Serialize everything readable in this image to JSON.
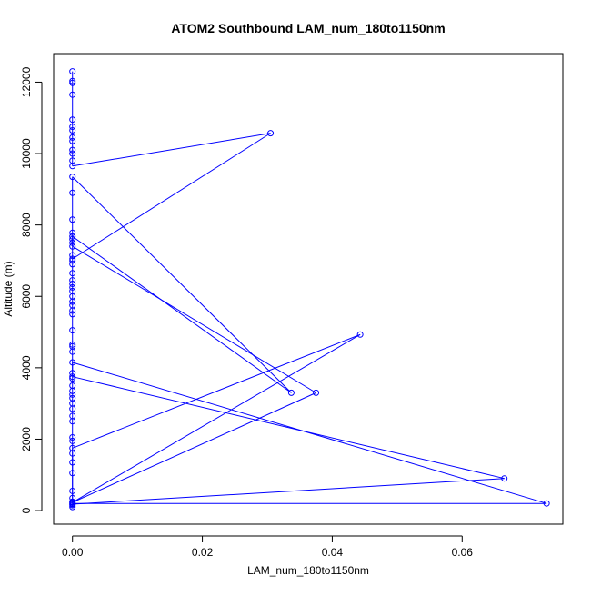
{
  "chart_data": {
    "type": "line",
    "title": "ATOM2 Southbound LAM_num_180to1150nm",
    "xlabel": "LAM_num_180to1150nm",
    "ylabel": "Altitude (m)",
    "xlim": [
      -0.0029,
      0.0755
    ],
    "ylim": [
      -380,
      12800
    ],
    "xticks": [
      0.0,
      0.02,
      0.04,
      0.06
    ],
    "xtick_labels": [
      "0.00",
      "0.02",
      "0.04",
      "0.06"
    ],
    "yticks": [
      0,
      2000,
      4000,
      6000,
      8000,
      10000,
      12000
    ],
    "ytick_labels": [
      "0",
      "2000",
      "4000",
      "6000",
      "8000",
      "10000",
      "12000"
    ],
    "grid": false,
    "legend": "none",
    "colors": {
      "series": "#0000ff",
      "axes": "#000000",
      "background": "#ffffff"
    },
    "series": [
      {
        "marker": "open-circle",
        "points": [
          [
            0,
            12300
          ],
          [
            0,
            12030
          ],
          [
            0,
            11980
          ],
          [
            0,
            11650
          ],
          [
            0,
            10950
          ],
          [
            0,
            10750
          ],
          [
            0,
            10650
          ],
          [
            0,
            10450
          ],
          [
            0,
            10350
          ],
          [
            0,
            10100
          ],
          [
            0,
            10000
          ],
          [
            0,
            9800
          ],
          [
            0,
            9650
          ],
          [
            0.0305,
            10570
          ],
          [
            0,
            7050
          ],
          [
            0,
            7680
          ],
          [
            0.0337,
            3300
          ],
          [
            0,
            9350
          ],
          [
            0,
            8900
          ],
          [
            0,
            8150
          ],
          [
            0,
            7780
          ],
          [
            0,
            7600
          ],
          [
            0,
            7500
          ],
          [
            0,
            7400
          ],
          [
            0.0375,
            3300
          ],
          [
            0,
            230
          ],
          [
            0.0443,
            4930
          ],
          [
            0,
            1750
          ],
          [
            0,
            1600
          ],
          [
            0,
            1350
          ],
          [
            0,
            1050
          ],
          [
            0,
            550
          ],
          [
            0,
            350
          ],
          [
            0,
            250
          ],
          [
            0,
            200
          ],
          [
            0.073,
            200
          ],
          [
            0,
            4150
          ],
          [
            0,
            3750
          ],
          [
            0.0665,
            900
          ],
          [
            0,
            180
          ],
          [
            0,
            150
          ],
          [
            0,
            100
          ],
          [
            0,
            1950
          ],
          [
            0,
            2050
          ],
          [
            0,
            2500
          ],
          [
            0,
            2650
          ],
          [
            0,
            2850
          ],
          [
            0,
            3000
          ],
          [
            0,
            3150
          ],
          [
            0,
            3250
          ],
          [
            0,
            3350
          ],
          [
            0,
            3500
          ],
          [
            0,
            3700
          ],
          [
            0,
            3850
          ],
          [
            0,
            4450
          ],
          [
            0,
            4600
          ],
          [
            0,
            4650
          ],
          [
            0,
            5050
          ],
          [
            0,
            5500
          ],
          [
            0,
            5600
          ],
          [
            0,
            5750
          ],
          [
            0,
            5850
          ],
          [
            0,
            6000
          ],
          [
            0,
            6150
          ],
          [
            0,
            6250
          ],
          [
            0,
            6350
          ],
          [
            0,
            6450
          ],
          [
            0,
            6650
          ],
          [
            0,
            6900
          ],
          [
            0,
            7000
          ],
          [
            0,
            7150
          ]
        ]
      }
    ]
  }
}
